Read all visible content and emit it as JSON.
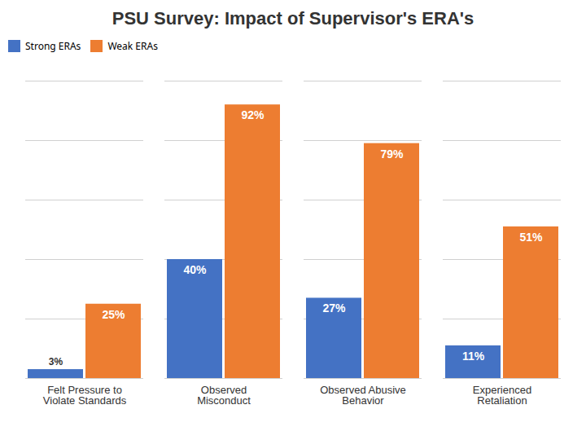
{
  "chart_data": {
    "type": "bar",
    "title": "PSU Survey: Impact of Supervisor's ERA's",
    "categories": [
      "Felt Pressure to\nViolate Standards",
      "Observed\nMisconduct",
      "Observed Abusive\nBehavior",
      "Experienced\nRetaliation"
    ],
    "series": [
      {
        "name": "Strong ERAs",
        "color": "#4472C4",
        "values": [
          3,
          40,
          27,
          11
        ],
        "value_labels": [
          "3%",
          "40%",
          "27%",
          "11%"
        ]
      },
      {
        "name": "Weak ERAs",
        "color": "#ED7D31",
        "values": [
          25,
          92,
          79,
          51
        ],
        "value_labels": [
          "25%",
          "92%",
          "79%",
          "51%"
        ]
      }
    ],
    "ylim": [
      0,
      100
    ],
    "yticks": [
      0,
      20,
      40,
      60,
      80,
      100
    ],
    "grid": true,
    "legend": "top",
    "data_labels": true,
    "tick_labels": "x"
  }
}
